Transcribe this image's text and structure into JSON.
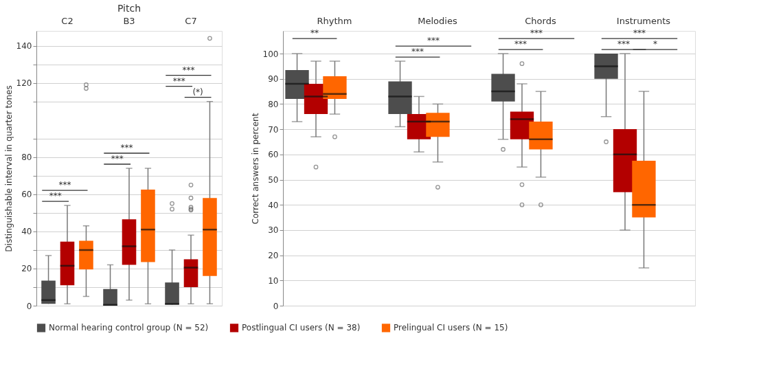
{
  "chart_data": [
    {
      "type": "box",
      "title": "Pitch",
      "ylabel": "Distinguishable interval in quarter tones",
      "categories": [
        "C2",
        "B3",
        "C7"
      ],
      "ylim": [
        0,
        148
      ],
      "yticks": [
        0,
        {
          "value": 10,
          "label": null
        },
        20,
        {
          "value": 30,
          "label": null
        },
        40,
        {
          "value": 50,
          "label": null
        },
        60,
        {
          "value": 70,
          "label": null
        },
        80,
        {
          "value": 90,
          "label": null
        },
        {
          "value": 110,
          "label": null
        },
        120,
        {
          "value": 130,
          "label": null
        },
        140
      ],
      "grid": "y",
      "legend": "bottom",
      "annotations": [
        "***",
        "***",
        "***",
        "***",
        "(*)",
        "***",
        "***"
      ],
      "series": [
        {
          "name": "Normal hearing control group (N = 52)",
          "color": "#4d4d4d",
          "boxes": [
            {
              "low": 1,
              "q1": 1,
              "median": 3,
              "q3": 13.5,
              "high": 27
            },
            {
              "low": 0,
              "q1": 0,
              "median": 0.5,
              "q3": 9,
              "high": 22
            },
            {
              "low": 0.5,
              "q1": 0.5,
              "median": 1,
              "q3": 12.5,
              "high": 30,
              "outliers": [
                55,
                52
              ]
            }
          ]
        },
        {
          "name": "Postlingual CI users (N = 38)",
          "color": "#b30000",
          "boxes": [
            {
              "low": 1,
              "q1": 11,
              "median": 21.5,
              "q3": 34.5,
              "high": 54
            },
            {
              "low": 3,
              "q1": 22,
              "median": 32,
              "q3": 46.5,
              "high": 74
            },
            {
              "low": 1,
              "q1": 10,
              "median": 20.5,
              "q3": 25,
              "high": 38,
              "outliers": [
                65,
                58,
                53,
                52,
                51.5
              ]
            }
          ]
        },
        {
          "name": "Prelingual CI users (N = 15)",
          "color": "#ff6600",
          "boxes": [
            {
              "low": 5,
              "q1": 19.5,
              "median": 30,
              "q3": 35,
              "high": 43,
              "outliers": [
                119,
                117
              ]
            },
            {
              "low": 1,
              "q1": 23.5,
              "median": 41,
              "q3": 62.5,
              "high": 74
            },
            {
              "low": 1,
              "q1": 16,
              "median": 41,
              "q3": 58,
              "high": 110,
              "outliers": [
                144
              ]
            }
          ]
        }
      ]
    },
    {
      "type": "box",
      "ylabel": "Correct answers in percent",
      "categories": [
        "Rhythm",
        "Melodies",
        "Chords",
        "Instruments"
      ],
      "ylim": [
        0,
        109
      ],
      "yticks": [
        0,
        10,
        20,
        30,
        40,
        50,
        60,
        70,
        80,
        90,
        100
      ],
      "grid": "y",
      "legend": "bottom",
      "annotations": [
        "**",
        "***",
        "***",
        "***",
        "***",
        "***",
        "*",
        "***"
      ],
      "series": [
        {
          "name": "Normal hearing control group (N = 52)",
          "color": "#4d4d4d",
          "boxes": [
            {
              "low": 73,
              "q1": 82,
              "median": 88,
              "q3": 93.5,
              "high": 100
            },
            {
              "low": 71,
              "q1": 76,
              "median": 83,
              "q3": 89,
              "high": 97
            },
            {
              "low": 66,
              "q1": 81,
              "median": 85,
              "q3": 92,
              "high": 100,
              "outliers": [
                62
              ]
            },
            {
              "low": 75,
              "q1": 90,
              "median": 95,
              "q3": 100,
              "high": 100,
              "outliers": [
                65
              ]
            }
          ]
        },
        {
          "name": "Postlingual CI users (N = 38)",
          "color": "#b30000",
          "boxes": [
            {
              "low": 67,
              "q1": 76,
              "median": 83,
              "q3": 88,
              "high": 97,
              "outliers": [
                55
              ]
            },
            {
              "low": 61,
              "q1": 66,
              "median": 73,
              "q3": 76,
              "high": 83
            },
            {
              "low": 55,
              "q1": 66,
              "median": 74,
              "q3": 77,
              "high": 88,
              "outliers": [
                96,
                48,
                40
              ]
            },
            {
              "low": 30,
              "q1": 45,
              "median": 60,
              "q3": 70,
              "high": 100
            }
          ]
        },
        {
          "name": "Prelingual CI users (N = 15)",
          "color": "#ff6600",
          "boxes": [
            {
              "low": 76,
              "q1": 82,
              "median": 84,
              "q3": 91,
              "high": 97,
              "outliers": [
                67
              ]
            },
            {
              "low": 57,
              "q1": 67,
              "median": 73,
              "q3": 76.5,
              "high": 80,
              "outliers": [
                47
              ]
            },
            {
              "low": 51,
              "q1": 62,
              "median": 66,
              "q3": 73,
              "high": 85,
              "outliers": [
                40
              ]
            },
            {
              "low": 15,
              "q1": 35,
              "median": 40,
              "q3": 57.5,
              "high": 85
            }
          ]
        }
      ]
    }
  ]
}
